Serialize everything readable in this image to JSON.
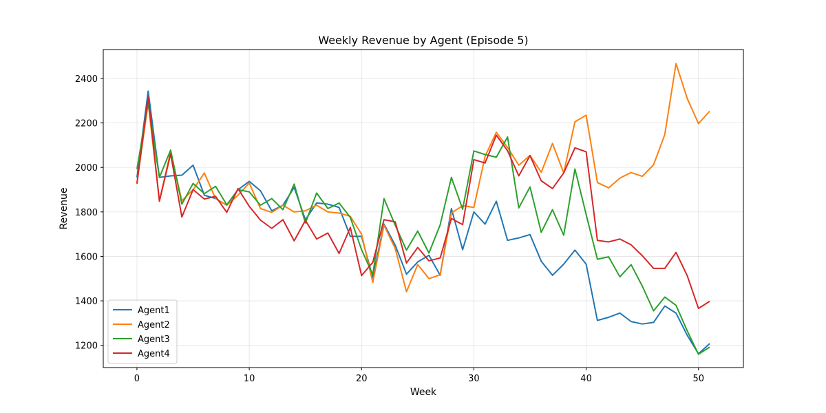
{
  "chart_data": {
    "type": "line",
    "title": "Weekly Revenue by Agent (Episode 5)",
    "xlabel": "Week",
    "ylabel": "Revenue",
    "xlim": [
      -3.0,
      54.0
    ],
    "ylim": [
      1100,
      2530
    ],
    "xticks": [
      0,
      10,
      20,
      30,
      40,
      50
    ],
    "yticks": [
      1200,
      1400,
      1600,
      1800,
      2000,
      2200,
      2400
    ],
    "grid": true,
    "legend_position": "lower-left",
    "x": [
      0,
      1,
      2,
      3,
      4,
      5,
      6,
      7,
      8,
      9,
      10,
      11,
      12,
      13,
      14,
      15,
      16,
      17,
      18,
      19,
      20,
      21,
      22,
      23,
      24,
      25,
      26,
      27,
      28,
      29,
      30,
      31,
      32,
      33,
      34,
      35,
      36,
      37,
      38,
      39,
      40,
      41,
      42,
      43,
      44,
      45,
      46,
      47,
      48,
      49,
      50,
      51
    ],
    "series": [
      {
        "name": "Agent1",
        "color": "#1f77b4",
        "values": [
          1955,
          2343,
          1955,
          1962,
          1965,
          2010,
          1875,
          1860,
          1830,
          1900,
          1937,
          1895,
          1805,
          1830,
          1910,
          1765,
          1840,
          1835,
          1820,
          1690,
          1690,
          1505,
          1745,
          1650,
          1520,
          1575,
          1605,
          1515,
          1815,
          1630,
          1800,
          1745,
          1848,
          1672,
          1683,
          1698,
          1578,
          1515,
          1565,
          1628,
          1565,
          1312,
          1326,
          1345,
          1307,
          1296,
          1303,
          1377,
          1345,
          1245,
          1162,
          1208
        ]
      },
      {
        "name": "Agent2",
        "color": "#ff7f0e",
        "values": [
          1930,
          2290,
          1850,
          2070,
          1850,
          1900,
          1975,
          1860,
          1830,
          1875,
          1930,
          1815,
          1798,
          1830,
          1800,
          1805,
          1830,
          1800,
          1795,
          1780,
          1700,
          1483,
          1740,
          1635,
          1441,
          1563,
          1500,
          1517,
          1795,
          1828,
          1820,
          2050,
          2158,
          2090,
          2010,
          2054,
          1978,
          2108,
          1975,
          2205,
          2235,
          1932,
          1908,
          1952,
          1977,
          1960,
          2012,
          2148,
          2467,
          2310,
          2197,
          2253
        ]
      },
      {
        "name": "Agent3",
        "color": "#2ca02c",
        "values": [
          1993,
          2290,
          1955,
          2078,
          1835,
          1928,
          1882,
          1915,
          1832,
          1900,
          1890,
          1830,
          1860,
          1810,
          1925,
          1750,
          1885,
          1815,
          1840,
          1775,
          1630,
          1518,
          1860,
          1740,
          1628,
          1714,
          1615,
          1742,
          1955,
          1812,
          2074,
          2058,
          2046,
          2137,
          1818,
          1912,
          1708,
          1810,
          1695,
          1993,
          1788,
          1587,
          1598,
          1508,
          1563,
          1466,
          1355,
          1417,
          1380,
          1265,
          1160,
          1192
        ]
      },
      {
        "name": "Agent4",
        "color": "#d62728",
        "values": [
          1927,
          2316,
          1848,
          2061,
          1777,
          1900,
          1858,
          1870,
          1798,
          1905,
          1825,
          1763,
          1726,
          1765,
          1670,
          1762,
          1678,
          1705,
          1613,
          1730,
          1514,
          1573,
          1765,
          1755,
          1570,
          1640,
          1580,
          1593,
          1770,
          1743,
          2035,
          2020,
          2145,
          2075,
          1962,
          2053,
          1940,
          1905,
          1975,
          2088,
          2070,
          1672,
          1665,
          1678,
          1652,
          1603,
          1546,
          1546,
          1618,
          1513,
          1366,
          1398
        ]
      }
    ]
  }
}
